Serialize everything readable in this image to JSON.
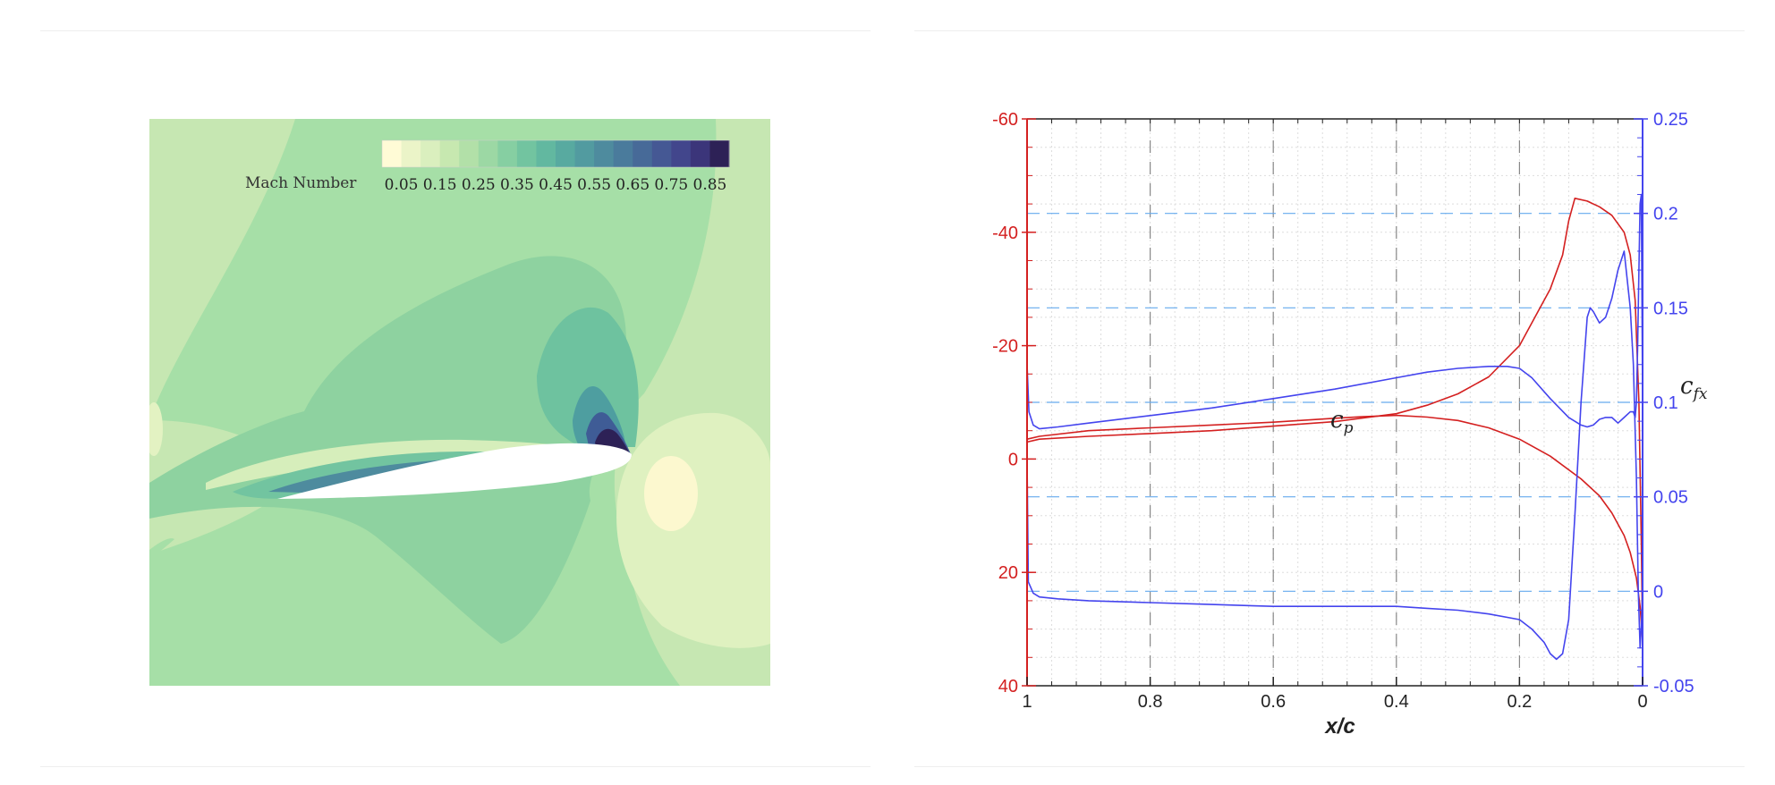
{
  "contour": {
    "colorbar_title": "Mach Number",
    "colorbar_ticks": [
      "0.05",
      "0.15",
      "0.25",
      "0.35",
      "0.45",
      "0.55",
      "0.65",
      "0.75",
      "0.85"
    ],
    "levels": 18,
    "palette": [
      "#fffbd6",
      "#ebf4c8",
      "#daefbe",
      "#c7e8b0",
      "#b2e0a8",
      "#9cd8a4",
      "#86cfa2",
      "#72c4a0",
      "#62b8a0",
      "#58aaa0",
      "#529ba0",
      "#4e8b9e",
      "#4a7b9c",
      "#476a98",
      "#455894",
      "#42468c",
      "#3b357a",
      "#2d2156"
    ]
  },
  "chart_data": {
    "type": "line",
    "xlabel": "x/c",
    "ylabel_left": "c_p",
    "ylabel_right": "c_fx",
    "x_ticks": [
      "1",
      "0.8",
      "0.6",
      "0.4",
      "0.2",
      "0"
    ],
    "yleft_ticks": [
      "-60",
      "-40",
      "-20",
      "0",
      "20",
      "40"
    ],
    "yright_ticks": [
      "0.25",
      "0.2",
      "0.15",
      "0.1",
      "0.05",
      "0",
      "-0.05"
    ],
    "xlim": [
      1,
      0
    ],
    "ylim_left": [
      40,
      -60
    ],
    "ylim_right": [
      -0.05,
      0.25
    ],
    "grid": true,
    "colors": {
      "cp": "#d42020",
      "cf": "#4444ee",
      "cf_grid": "#66aaee"
    },
    "series": [
      {
        "axis": "left",
        "x": [
          1.0,
          0.98,
          0.9,
          0.8,
          0.7,
          0.6,
          0.5,
          0.4,
          0.35,
          0.3,
          0.25,
          0.2,
          0.17,
          0.15,
          0.13,
          0.12,
          0.11,
          0.09,
          0.07,
          0.05,
          0.03,
          0.02,
          0.012,
          0.006,
          0.002,
          0.0
        ],
        "y": [
          -3,
          -3.5,
          -4,
          -4.5,
          -5,
          -5.8,
          -6.6,
          -8,
          -9.5,
          -11.5,
          -14.5,
          -20,
          -26,
          -30,
          -36,
          -42,
          -46,
          -45.5,
          -44.5,
          -43,
          -40,
          -36,
          -28,
          -10,
          15,
          32
        ]
      },
      {
        "axis": "left",
        "x": [
          1.0,
          0.98,
          0.9,
          0.8,
          0.7,
          0.6,
          0.5,
          0.45,
          0.4,
          0.35,
          0.3,
          0.25,
          0.2,
          0.15,
          0.1,
          0.07,
          0.05,
          0.03,
          0.02,
          0.01,
          0.004,
          0.0
        ],
        "y": [
          -3.5,
          -4,
          -5,
          -5.5,
          -6,
          -6.5,
          -7.2,
          -7.5,
          -7.7,
          -7.4,
          -6.8,
          -5.5,
          -3.5,
          -0.5,
          3.5,
          6.5,
          9.5,
          13.5,
          16.5,
          21,
          26,
          32
        ]
      },
      {
        "axis": "right",
        "x": [
          1.0,
          0.997,
          0.99,
          0.98,
          0.95,
          0.9,
          0.8,
          0.7,
          0.6,
          0.5,
          0.4,
          0.35,
          0.3,
          0.25,
          0.22,
          0.2,
          0.18,
          0.15,
          0.12,
          0.1,
          0.09,
          0.08,
          0.07,
          0.06,
          0.05,
          0.04,
          0.03,
          0.02,
          0.015,
          0.012,
          0.01,
          0.008,
          0.006,
          0.004,
          0.002,
          0.0
        ],
        "y": [
          0.12,
          0.095,
          0.088,
          0.086,
          0.087,
          0.089,
          0.093,
          0.097,
          0.102,
          0.107,
          0.113,
          0.116,
          0.118,
          0.119,
          0.119,
          0.118,
          0.113,
          0.102,
          0.092,
          0.088,
          0.087,
          0.088,
          0.091,
          0.092,
          0.092,
          0.089,
          0.092,
          0.095,
          0.095,
          0.092,
          0.1,
          0.13,
          0.17,
          0.205,
          0.21,
          0.1
        ]
      },
      {
        "axis": "right",
        "x": [
          1.0,
          0.998,
          0.99,
          0.98,
          0.95,
          0.9,
          0.8,
          0.7,
          0.6,
          0.5,
          0.4,
          0.35,
          0.3,
          0.25,
          0.2,
          0.18,
          0.16,
          0.15,
          0.14,
          0.13,
          0.12,
          0.11,
          0.1,
          0.09,
          0.085,
          0.08,
          0.07,
          0.06,
          0.05,
          0.04,
          0.03,
          0.02,
          0.015,
          0.01,
          0.007,
          0.004,
          0.002,
          0.0
        ],
        "y": [
          0.07,
          0.005,
          -0.001,
          -0.003,
          -0.004,
          -0.005,
          -0.006,
          -0.007,
          -0.008,
          -0.008,
          -0.008,
          -0.009,
          -0.01,
          -0.012,
          -0.015,
          -0.02,
          -0.027,
          -0.033,
          -0.036,
          -0.033,
          -0.015,
          0.04,
          0.1,
          0.145,
          0.15,
          0.148,
          0.142,
          0.145,
          0.155,
          0.17,
          0.18,
          0.15,
          0.12,
          0.06,
          0.0,
          -0.03,
          -0.018,
          0.0
        ]
      }
    ]
  }
}
